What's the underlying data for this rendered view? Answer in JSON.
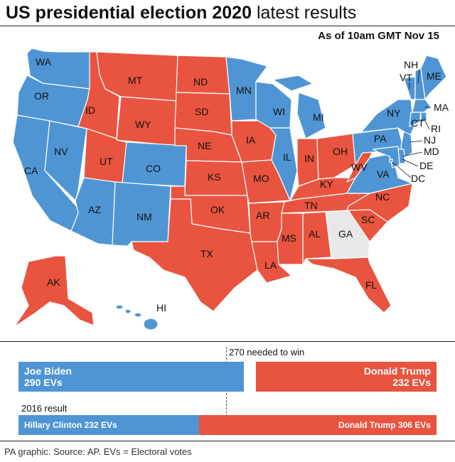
{
  "header": {
    "title_bold": "US presidential election 2020",
    "title_light": "latest results",
    "as_of": "As of 10am GMT Nov 15"
  },
  "colors": {
    "biden": "#4f95d4",
    "trump": "#e8543f",
    "undecided": "#e8e8e8",
    "border": "#ffffff"
  },
  "map": {
    "states": [
      {
        "code": "WA",
        "winner": "biden"
      },
      {
        "code": "OR",
        "winner": "biden"
      },
      {
        "code": "CA",
        "winner": "biden"
      },
      {
        "code": "NV",
        "winner": "biden"
      },
      {
        "code": "ID",
        "winner": "trump"
      },
      {
        "code": "MT",
        "winner": "trump"
      },
      {
        "code": "WY",
        "winner": "trump"
      },
      {
        "code": "UT",
        "winner": "trump"
      },
      {
        "code": "CO",
        "winner": "biden"
      },
      {
        "code": "AZ",
        "winner": "biden"
      },
      {
        "code": "NM",
        "winner": "biden"
      },
      {
        "code": "ND",
        "winner": "trump"
      },
      {
        "code": "SD",
        "winner": "trump"
      },
      {
        "code": "NE",
        "winner": "trump"
      },
      {
        "code": "KS",
        "winner": "trump"
      },
      {
        "code": "OK",
        "winner": "trump"
      },
      {
        "code": "TX",
        "winner": "trump"
      },
      {
        "code": "MN",
        "winner": "biden"
      },
      {
        "code": "IA",
        "winner": "trump"
      },
      {
        "code": "MO",
        "winner": "trump"
      },
      {
        "code": "AR",
        "winner": "trump"
      },
      {
        "code": "LA",
        "winner": "trump"
      },
      {
        "code": "WI",
        "winner": "biden"
      },
      {
        "code": "IL",
        "winner": "biden"
      },
      {
        "code": "MI",
        "winner": "biden"
      },
      {
        "code": "IN",
        "winner": "trump"
      },
      {
        "code": "OH",
        "winner": "trump"
      },
      {
        "code": "KY",
        "winner": "trump"
      },
      {
        "code": "TN",
        "winner": "trump"
      },
      {
        "code": "MS",
        "winner": "trump"
      },
      {
        "code": "AL",
        "winner": "trump"
      },
      {
        "code": "GA",
        "winner": "undecided"
      },
      {
        "code": "FL",
        "winner": "trump"
      },
      {
        "code": "SC",
        "winner": "trump"
      },
      {
        "code": "NC",
        "winner": "trump"
      },
      {
        "code": "VA",
        "winner": "biden"
      },
      {
        "code": "WV",
        "winner": "trump"
      },
      {
        "code": "PA",
        "winner": "biden"
      },
      {
        "code": "NY",
        "winner": "biden"
      },
      {
        "code": "ME",
        "winner": "biden"
      },
      {
        "code": "NH",
        "winner": "biden"
      },
      {
        "code": "VT",
        "winner": "biden"
      },
      {
        "code": "MA",
        "winner": "biden"
      },
      {
        "code": "RI",
        "winner": "biden"
      },
      {
        "code": "CT",
        "winner": "biden"
      },
      {
        "code": "NJ",
        "winner": "biden"
      },
      {
        "code": "DE",
        "winner": "biden"
      },
      {
        "code": "MD",
        "winner": "biden"
      },
      {
        "code": "DC",
        "winner": "biden"
      },
      {
        "code": "AK",
        "winner": "trump"
      },
      {
        "code": "HI",
        "winner": "biden"
      }
    ]
  },
  "results_2020": {
    "needed": "270 needed to win",
    "needed_value": 270,
    "total": 538,
    "biden": {
      "name": "Joe Biden",
      "evs_label": "290 EVs",
      "evs": 290
    },
    "trump": {
      "name": "Donald Trump",
      "evs_label": "232 EVs",
      "evs": 232
    }
  },
  "results_2016": {
    "label": "2016 result",
    "clinton": {
      "label": "Hillary Clinton 232 EVs",
      "evs": 232
    },
    "trump": {
      "label": "Donald Trump 306 EVs",
      "evs": 306
    }
  },
  "footer": {
    "source": "PA graphic. Source: AP. EVs = Electoral votes"
  }
}
